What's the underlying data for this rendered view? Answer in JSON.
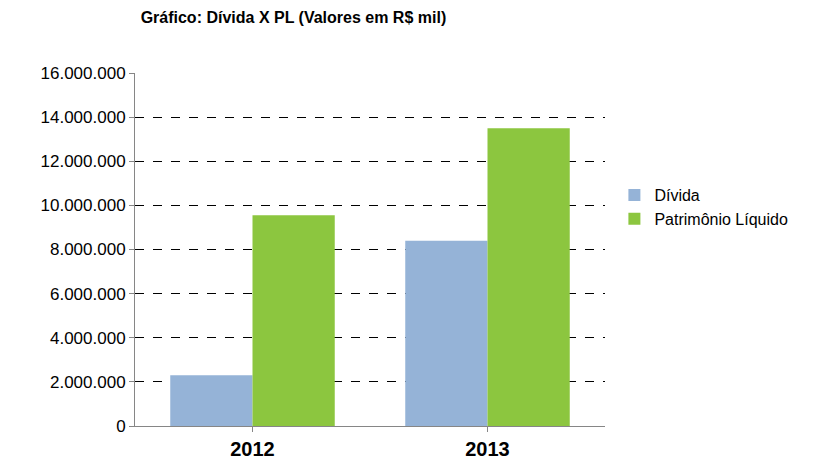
{
  "chart_data": {
    "type": "bar",
    "title": "Gráfico: Dívida X PL (Valores em R$ mil)",
    "categories": [
      "2012",
      "2013"
    ],
    "series": [
      {
        "name": "Dívida",
        "color": "#95b3d7",
        "values": [
          2300000,
          8400000
        ]
      },
      {
        "name": "Patrimônio Líquido",
        "color": "#8cc63f",
        "values": [
          9550000,
          13500000
        ]
      }
    ],
    "ylim": [
      0,
      16000000
    ],
    "yticks": [
      {
        "value": 0,
        "label": "0"
      },
      {
        "value": 2000000,
        "label": "2.000.000"
      },
      {
        "value": 4000000,
        "label": "4.000.000"
      },
      {
        "value": 6000000,
        "label": "6.000.000"
      },
      {
        "value": 8000000,
        "label": "8.000.000"
      },
      {
        "value": 10000000,
        "label": "10.000.000"
      },
      {
        "value": 12000000,
        "label": "12.000.000"
      },
      {
        "value": 14000000,
        "label": "14.000.000"
      },
      {
        "value": 16000000,
        "label": "16.000.000"
      }
    ],
    "grid": true,
    "legend": "right"
  }
}
